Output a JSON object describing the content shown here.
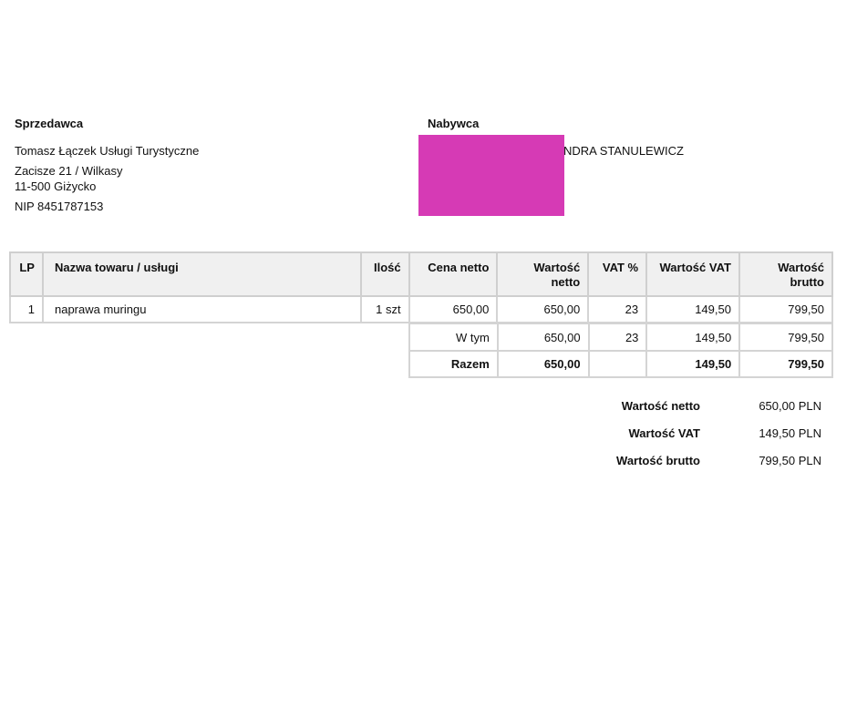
{
  "seller": {
    "heading": "Sprzedawca",
    "name": "Tomasz Łączek Usługi Turystyczne",
    "address1": "Zacisze 21 / Wilkasy",
    "address2": "11-500 Giżycko",
    "nip": "NIP 8451787153"
  },
  "buyer": {
    "heading": "Nabywca",
    "name_visible": "NDRA STANULEWICZ",
    "redaction_color": "#d63ab5"
  },
  "table": {
    "headers": [
      "LP",
      "Nazwa towaru / usługi",
      "Ilość",
      "Cena netto",
      "Wartość netto",
      "VAT %",
      "Wartość VAT",
      "Wartość brutto"
    ],
    "rows": [
      [
        "1",
        "naprawa muringu",
        "1 szt",
        "650,00",
        "650,00",
        "23",
        "149,50",
        "799,50"
      ]
    ],
    "breakdown": [
      "W tym",
      "650,00",
      "23",
      "149,50",
      "799,50"
    ],
    "total": [
      "Razem",
      "650,00",
      "",
      "149,50",
      "799,50"
    ]
  },
  "summary": [
    {
      "label": "Wartość netto",
      "value": "650,00 PLN"
    },
    {
      "label": "Wartość VAT",
      "value": "149,50 PLN"
    },
    {
      "label": "Wartość brutto",
      "value": "799,50 PLN"
    }
  ]
}
